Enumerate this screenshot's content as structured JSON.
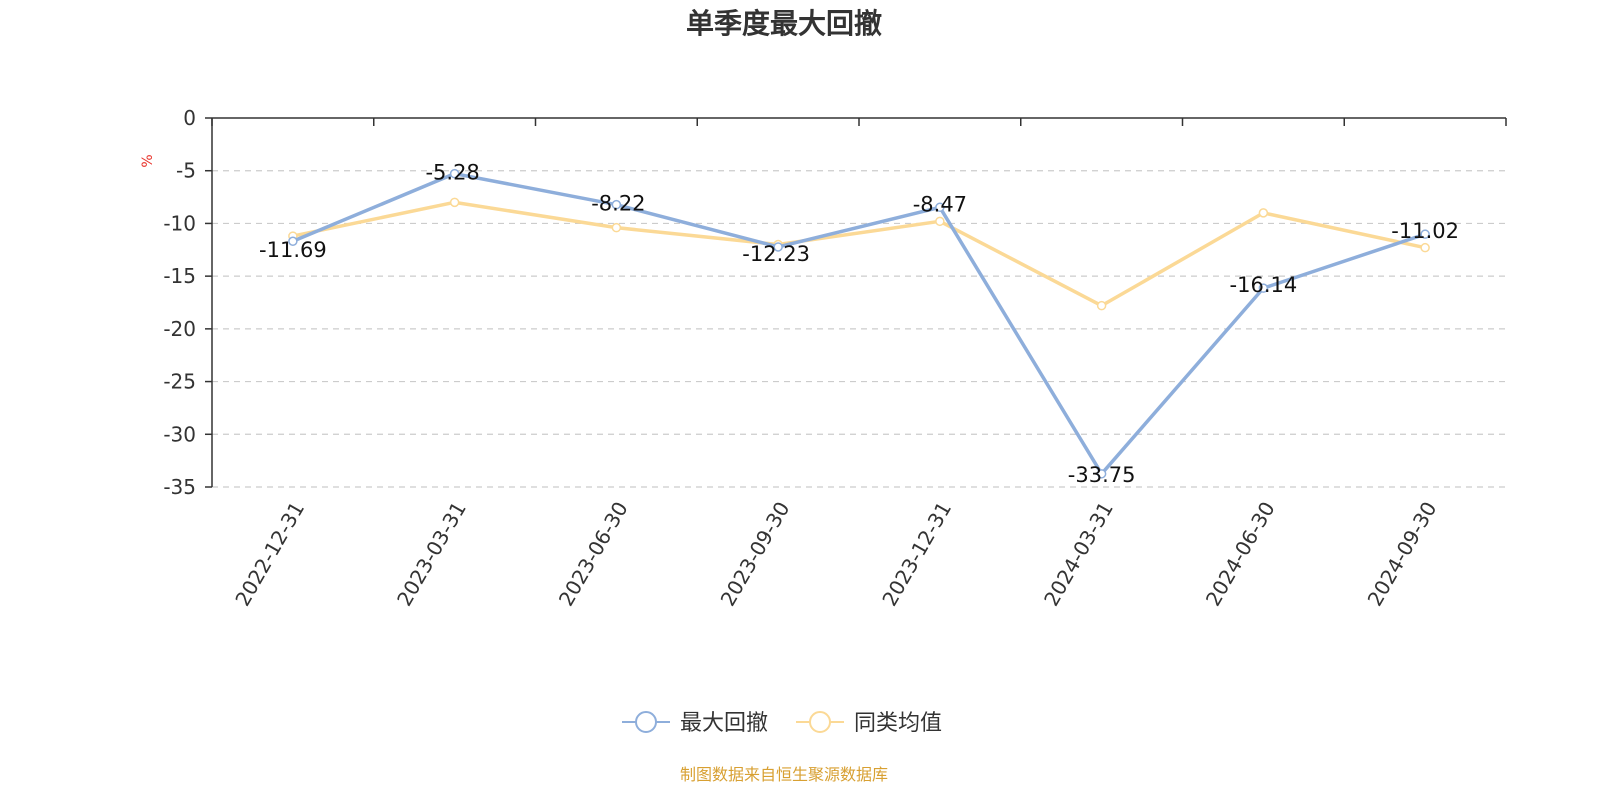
{
  "chart_data": {
    "type": "line",
    "title": "单季度最大回撤",
    "ylabel": "%",
    "xlabel": "",
    "categories": [
      "2022-12-31",
      "2023-03-31",
      "2023-06-30",
      "2023-09-30",
      "2023-12-31",
      "2024-03-31",
      "2024-06-30",
      "2024-09-30"
    ],
    "ylim": [
      -35,
      0
    ],
    "yticks": [
      0,
      -5,
      -10,
      -15,
      -20,
      -25,
      -30,
      -35
    ],
    "grid": true,
    "legend_position": "bottom",
    "series": [
      {
        "name": "最大回撤",
        "color": "#8eaedb",
        "values": [
          -11.69,
          -5.28,
          -8.22,
          -12.23,
          -8.47,
          -33.75,
          -16.14,
          -11.02
        ],
        "data_labels": [
          "-11.69",
          "-5.28",
          "-8.22",
          "-12.23",
          "-8.47",
          "-33.75",
          "-16.14",
          "-11.02"
        ]
      },
      {
        "name": "同类均值",
        "color": "#fbd996",
        "values": [
          -11.2,
          -8.0,
          -10.4,
          -12.0,
          -9.8,
          -17.8,
          -9.0,
          -12.3
        ]
      }
    ]
  },
  "colors": {
    "unit_label": "#e8332b",
    "axis": "#333333",
    "grid": "#cccccc",
    "source_text": "#d8a032"
  },
  "footer": {
    "source": "制图数据来自恒生聚源数据库"
  }
}
